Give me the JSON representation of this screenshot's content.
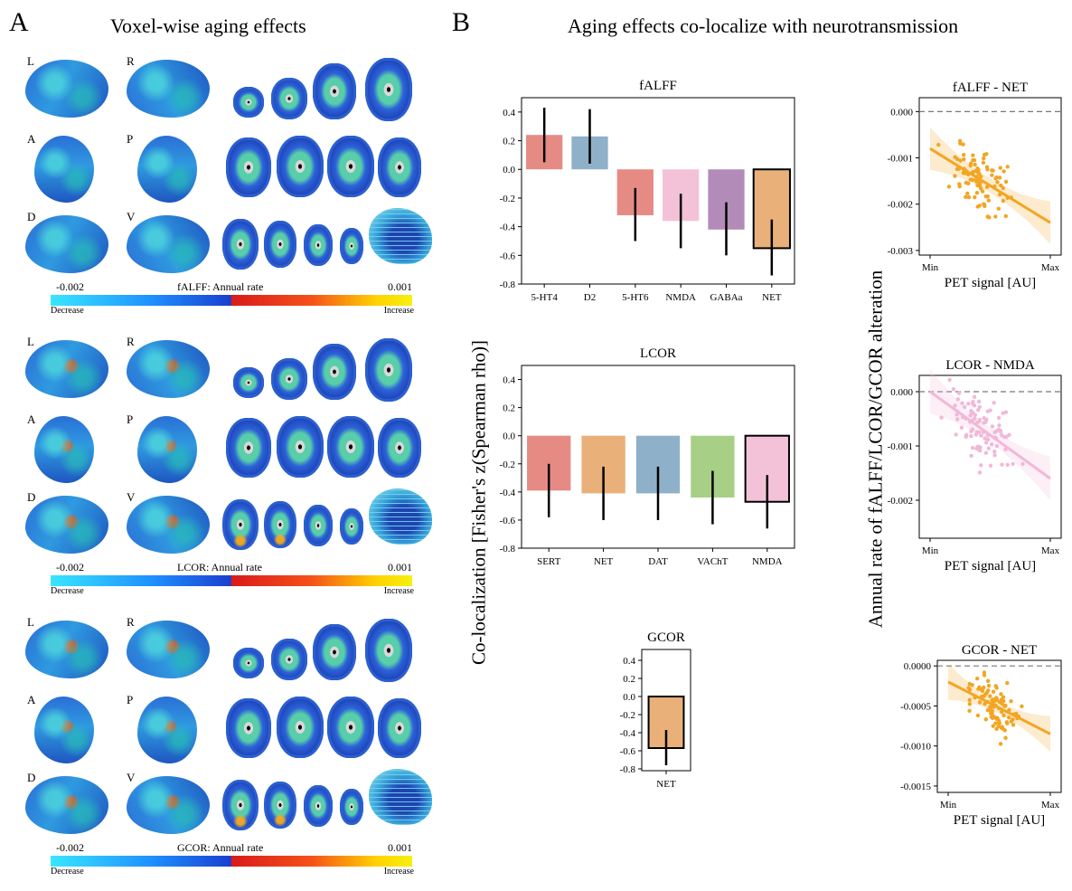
{
  "panel_a": {
    "letter": "A",
    "title": "Voxel-wise aging effects",
    "view_labels": {
      "L": "L",
      "R": "R",
      "A": "A",
      "P": "P",
      "D": "D",
      "V": "V"
    },
    "rows": [
      {
        "colorbar_min": "-0.002",
        "colorbar_max": "0.001",
        "colorbar_label": "fALFF: Annual rate",
        "decrease": "Decrease",
        "increase": "Increase"
      },
      {
        "colorbar_min": "-0.002",
        "colorbar_max": "0.001",
        "colorbar_label": "LCOR: Annual rate",
        "decrease": "Decrease",
        "increase": "Increase"
      },
      {
        "colorbar_min": "-0.002",
        "colorbar_max": "0.001",
        "colorbar_label": "GCOR: Annual rate",
        "decrease": "Decrease",
        "increase": "Increase"
      }
    ],
    "colors": {
      "decrease_start": "#39e6ff",
      "decrease_end": "#1a3fd0",
      "increase_start": "#d81b1b",
      "increase_end": "#f6f010"
    }
  },
  "panel_b": {
    "letter": "B",
    "title": "Aging effects co-localize with neurotransmission",
    "ylabel_left": "Co-localization [Fisher's z(Spearman rho)]",
    "ylabel_right": "Annual rate of fALFF/LCOR/GCOR alteration"
  },
  "chart_data": [
    {
      "type": "bar",
      "title": "fALFF",
      "categories": [
        "5-HT4",
        "D2",
        "5-HT6",
        "NMDA",
        "GABAa",
        "NET"
      ],
      "values": [
        0.24,
        0.23,
        -0.32,
        -0.36,
        -0.42,
        -0.55
      ],
      "error_low": [
        0.05,
        0.04,
        -0.5,
        -0.55,
        -0.6,
        -0.74
      ],
      "error_high": [
        0.43,
        0.42,
        -0.13,
        -0.17,
        -0.23,
        -0.35
      ],
      "colors": [
        "#e58b84",
        "#8fb0c9",
        "#e58b84",
        "#f4c2d8",
        "#b38bb8",
        "#e9b07a"
      ],
      "highlight": "NET",
      "ylim": [
        -0.8,
        0.5
      ],
      "yticks": [
        "0.4",
        "0.2",
        "0.0",
        "-0.2",
        "-0.4",
        "-0.6",
        "-0.8"
      ]
    },
    {
      "type": "bar",
      "title": "LCOR",
      "categories": [
        "SERT",
        "NET",
        "DAT",
        "VAChT",
        "NMDA"
      ],
      "values": [
        -0.39,
        -0.41,
        -0.41,
        -0.44,
        -0.47
      ],
      "error_low": [
        -0.58,
        -0.6,
        -0.6,
        -0.63,
        -0.66
      ],
      "error_high": [
        -0.2,
        -0.22,
        -0.22,
        -0.25,
        -0.28
      ],
      "colors": [
        "#e58b84",
        "#e9b07a",
        "#8fb0c9",
        "#a8cf86",
        "#f4c2d8"
      ],
      "highlight": "NMDA",
      "ylim": [
        -0.8,
        0.5
      ],
      "yticks": [
        "0.4",
        "0.2",
        "0.0",
        "-0.2",
        "-0.4",
        "-0.6",
        "-0.8"
      ]
    },
    {
      "type": "bar",
      "title": "GCOR",
      "categories": [
        "NET"
      ],
      "values": [
        -0.57
      ],
      "error_low": [
        -0.76
      ],
      "error_high": [
        -0.37
      ],
      "colors": [
        "#e9b07a"
      ],
      "highlight": "NET",
      "ylim": [
        -0.82,
        0.52
      ],
      "yticks": [
        "0.4",
        "0.2",
        "0.0",
        "-0.2",
        "-0.4",
        "-0.6",
        "-0.8"
      ]
    },
    {
      "type": "scatter",
      "title": "fALFF - NET",
      "xlabel": "PET signal [AU]",
      "xticks": [
        "Min",
        "Max"
      ],
      "yticks": [
        "0.000",
        "-0.001",
        "-0.002",
        "-0.003"
      ],
      "ylim": [
        -0.0031,
        0.0003
      ],
      "color": "#f2a623",
      "fit_line": {
        "x": [
          0.0,
          1.0
        ],
        "y": [
          -0.0008,
          -0.0024
        ]
      },
      "reference_line": 0
    },
    {
      "type": "scatter",
      "title": "LCOR - NMDA",
      "xlabel": "PET signal [AU]",
      "xticks": [
        "Min",
        "Max"
      ],
      "yticks": [
        "0.000",
        "-0.001",
        "-0.002"
      ],
      "ylim": [
        -0.0027,
        0.0003
      ],
      "color": "#f2b8d8",
      "fit_line": {
        "x": [
          0.0,
          1.0
        ],
        "y": [
          0.0,
          -0.0016
        ]
      },
      "reference_line": 0
    },
    {
      "type": "scatter",
      "title": "GCOR - NET",
      "xlabel": "PET signal [AU]",
      "xticks": [
        "Min",
        "Max"
      ],
      "yticks": [
        "0.0000",
        "-0.0005",
        "-0.0010",
        "-0.0015"
      ],
      "ylim": [
        -0.00158,
        7e-05
      ],
      "color": "#f2a623",
      "fit_line": {
        "x": [
          0.0,
          1.0
        ],
        "y": [
          -0.0002,
          -0.00085
        ]
      },
      "reference_line": 0
    }
  ]
}
